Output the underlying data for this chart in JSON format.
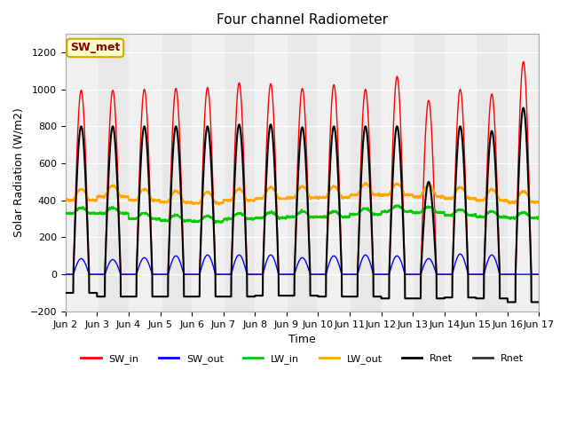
{
  "title": "Four channel Radiometer",
  "xlabel": "Time",
  "ylabel": "Solar Radiation (W/m2)",
  "ylim": [
    -200,
    1300
  ],
  "xlim": [
    0,
    15
  ],
  "yticks": [
    -200,
    0,
    200,
    400,
    600,
    800,
    1000,
    1200
  ],
  "xtick_labels": [
    "Jun 2",
    "Jun 3",
    "Jun 4",
    "Jun 5",
    "Jun 6",
    "Jun 7",
    "Jun 8",
    "Jun 9",
    "Jun 10",
    "Jun 11",
    "Jun 12",
    "Jun 13",
    "Jun 14",
    "Jun 15",
    "Jun 16",
    "Jun 17"
  ],
  "annotation_text": "SW_met",
  "annotation_color": "#8B0000",
  "annotation_bg": "#FFFFCC",
  "annotation_border": "#CCAA00",
  "sw_in_color": "#FF0000",
  "sw_out_color": "#0000FF",
  "lw_in_color": "#00CC00",
  "lw_out_color": "#FFA500",
  "rnet_color": "#000000",
  "rnet2_color": "#333333",
  "bg_color": "#E8E8E8",
  "n_days": 15,
  "peak_sw_in": [
    995,
    995,
    1000,
    1005,
    1010,
    1035,
    1030,
    1005,
    1025,
    1000,
    1070,
    940,
    1000,
    975,
    1150
  ],
  "peak_sw_out": [
    85,
    80,
    90,
    100,
    105,
    105,
    105,
    90,
    100,
    105,
    100,
    85,
    110,
    105,
    0
  ],
  "lw_in_base": [
    330,
    330,
    300,
    290,
    285,
    300,
    305,
    310,
    310,
    325,
    340,
    335,
    320,
    310,
    305
  ],
  "lw_out_base": [
    400,
    420,
    400,
    390,
    385,
    400,
    410,
    415,
    415,
    430,
    430,
    420,
    410,
    400,
    390
  ],
  "peak_rnet": [
    800,
    800,
    800,
    800,
    800,
    810,
    810,
    795,
    800,
    800,
    800,
    500,
    800,
    775,
    900
  ],
  "trough_rnet": [
    -100,
    -120,
    -120,
    -120,
    -120,
    -120,
    -115,
    -115,
    -120,
    -120,
    -130,
    -130,
    -125,
    -130,
    -150
  ]
}
